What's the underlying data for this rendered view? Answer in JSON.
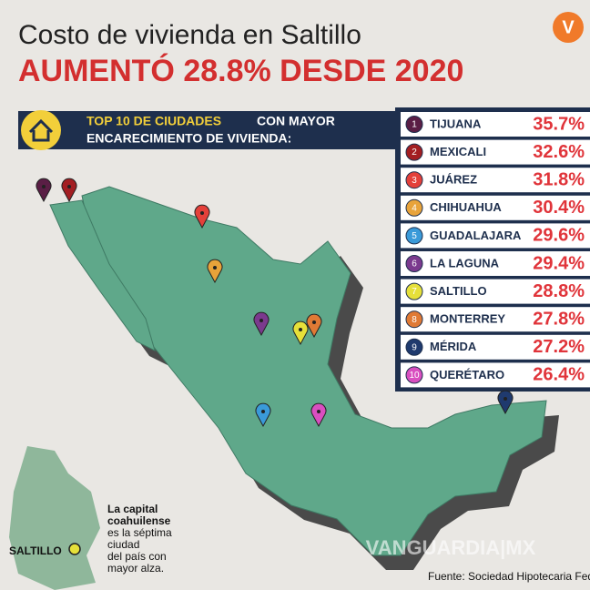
{
  "header": {
    "title": "Costo de vivienda en Saltillo",
    "subtitle": "AUMENTÓ 28.8% DESDE 2020",
    "logo": "V"
  },
  "ranking": {
    "title_highlight": "TOP 10 DE CIUDADES",
    "title_rest": "CON MAYOR",
    "title_line2": "ENCARECIMIENTO DE VIVIENDA:",
    "rows": [
      {
        "rank": "1",
        "city": "TIJUANA",
        "value": "35.7%",
        "color": "#5a1e45"
      },
      {
        "rank": "2",
        "city": "MEXICALI",
        "value": "32.6%",
        "color": "#a31e22"
      },
      {
        "rank": "3",
        "city": "JUÁREZ",
        "value": "31.8%",
        "color": "#e4403a"
      },
      {
        "rank": "4",
        "city": "CHIHUAHUA",
        "value": "30.4%",
        "color": "#e8a33a"
      },
      {
        "rank": "5",
        "city": "GUADALAJARA",
        "value": "29.6%",
        "color": "#3a9ad9"
      },
      {
        "rank": "6",
        "city": "LA LAGUNA",
        "value": "29.4%",
        "color": "#7b3a8e"
      },
      {
        "rank": "7",
        "city": "SALTILLO",
        "value": "28.8%",
        "color": "#e6e03a"
      },
      {
        "rank": "8",
        "city": "MONTERREY",
        "value": "27.8%",
        "color": "#e07a35"
      },
      {
        "rank": "9",
        "city": "MÉRIDA",
        "value": "27.2%",
        "color": "#1f3a6e"
      },
      {
        "rank": "10",
        "city": "QUERÉTARO",
        "value": "26.4%",
        "color": "#d94fc0"
      }
    ]
  },
  "inset": {
    "label": "SALTILLO",
    "bold_lines": [
      "La capital",
      "coahuilense"
    ],
    "lines": [
      "es la séptima",
      "ciudad",
      "del país con",
      "mayor alza."
    ]
  },
  "source": "Fuente: Sociedad Hipotecaria Federal.",
  "watermark": "VANGUARDIA|MX"
}
